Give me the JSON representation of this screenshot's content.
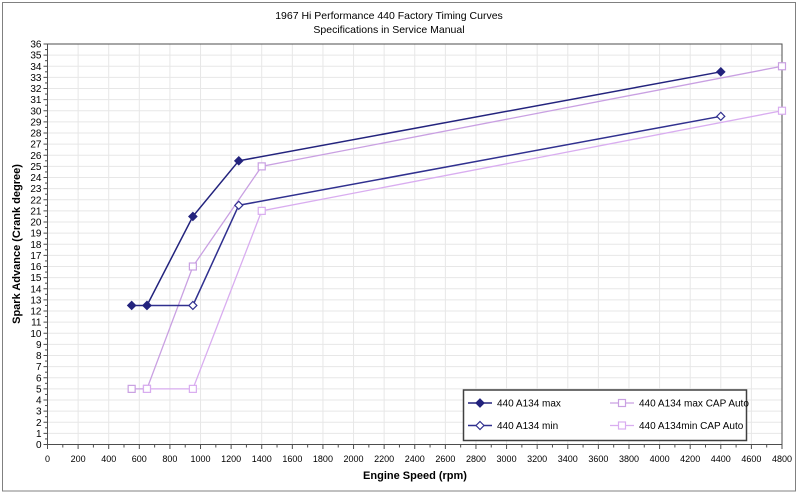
{
  "page": {
    "background": "#ffffff",
    "outer_border_color": "#808080"
  },
  "chart_data": {
    "type": "line",
    "title": "1967 Hi Performance 440 Factory Timing Curves",
    "subtitle": "Specifications in Service Manual",
    "xlabel": "Engine Speed (rpm)",
    "ylabel": "Spark Advance (Crank degree)",
    "xlim": [
      0,
      4800
    ],
    "ylim": [
      0,
      36
    ],
    "x_tick_step": 200,
    "x_minor_tick_step": 100,
    "y_tick_step": 1,
    "y_minor_tick_step": 0.5,
    "grid": true,
    "gridline_color": "#e7e7e7",
    "axis_color": "#4d4d4d",
    "tick_label_color": "#000000",
    "legend_position": "inside-bottom-right",
    "series": [
      {
        "name": "440  A134 max",
        "color": "#23237d",
        "marker": "diamond-filled",
        "line_width": 1.5,
        "z": 4,
        "points": [
          [
            550,
            12.5
          ],
          [
            650,
            12.5
          ],
          [
            950,
            20.5
          ],
          [
            1250,
            25.5
          ],
          [
            4400,
            33.5
          ]
        ]
      },
      {
        "name": "440 A134 max CAP Auto",
        "color": "#c9a0e2",
        "marker": "square-open",
        "line_width": 1.3,
        "z": 1,
        "points": [
          [
            550,
            5
          ],
          [
            650,
            5
          ],
          [
            950,
            16
          ],
          [
            1400,
            25
          ],
          [
            4800,
            34
          ]
        ]
      },
      {
        "name": "440  A134 min",
        "color": "#30308f",
        "marker": "diamond-open",
        "line_width": 1.5,
        "z": 3,
        "points": [
          [
            650,
            12.5
          ],
          [
            950,
            12.5
          ],
          [
            1250,
            21.5
          ],
          [
            4400,
            29.5
          ]
        ]
      },
      {
        "name": "440 A134min  CAP Auto",
        "color": "#d9adf0",
        "marker": "square-open",
        "line_width": 1.3,
        "z": 2,
        "points": [
          [
            650,
            5
          ],
          [
            950,
            5
          ],
          [
            1400,
            21
          ],
          [
            4800,
            30
          ]
        ]
      }
    ]
  }
}
